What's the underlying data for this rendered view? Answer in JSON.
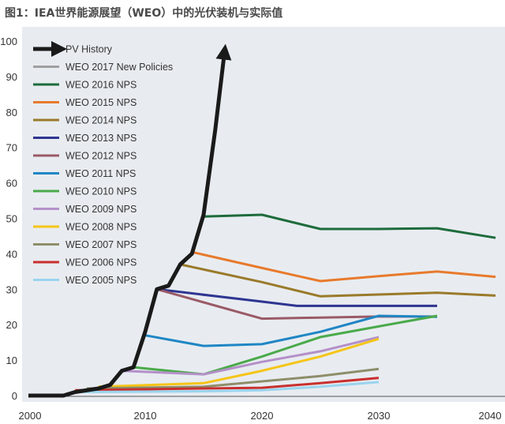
{
  "title": "图1：IEA世界能源展望（WEO）中的光伏装机与实际值",
  "chart_data": {
    "type": "line",
    "xlim": [
      2000,
      2040
    ],
    "ylim": [
      0,
      100
    ],
    "x_ticks": [
      2000,
      2010,
      2020,
      2030,
      2040
    ],
    "y_ticks": [
      0,
      10,
      20,
      30,
      40,
      50,
      60,
      70,
      80,
      90,
      100
    ],
    "grid": false,
    "legend_position": "top-left",
    "series": [
      {
        "name": "PV History",
        "color": "#1a1a1a",
        "width": 5,
        "arrow": true,
        "points": [
          [
            2000,
            0
          ],
          [
            2003,
            0
          ],
          [
            2004,
            1
          ],
          [
            2006,
            2
          ],
          [
            2007,
            3
          ],
          [
            2008,
            7
          ],
          [
            2009,
            8
          ],
          [
            2010,
            18
          ],
          [
            2011,
            30
          ],
          [
            2012,
            31
          ],
          [
            2013,
            37
          ],
          [
            2014,
            40
          ],
          [
            2015,
            51
          ],
          [
            2016,
            75
          ],
          [
            2016.8,
            97
          ]
        ]
      },
      {
        "name": "WEO 2017 New Policies",
        "color": "#a0a0a0",
        "width": 3,
        "points": []
      },
      {
        "name": "WEO 2016 NPS",
        "color": "#1e6b3b",
        "width": 3,
        "points": [
          [
            2015,
            50.5
          ],
          [
            2020,
            51
          ],
          [
            2025,
            47
          ],
          [
            2030,
            47
          ],
          [
            2035,
            47.2
          ],
          [
            2040,
            44.5
          ]
        ]
      },
      {
        "name": "WEO 2015 NPS",
        "color": "#e87a2c",
        "width": 3,
        "points": [
          [
            2014,
            40.5
          ],
          [
            2020,
            36
          ],
          [
            2025,
            32.3
          ],
          [
            2030,
            33.7
          ],
          [
            2035,
            35
          ],
          [
            2040,
            33.5
          ]
        ]
      },
      {
        "name": "WEO 2014 NPS",
        "color": "#9a7a2a",
        "width": 3,
        "points": [
          [
            2013,
            37
          ],
          [
            2020,
            32
          ],
          [
            2025,
            28
          ],
          [
            2030,
            28.5
          ],
          [
            2035,
            29
          ],
          [
            2040,
            28.2
          ]
        ]
      },
      {
        "name": "WEO 2013 NPS",
        "color": "#2e3590",
        "width": 3,
        "points": [
          [
            2011,
            30
          ],
          [
            2020,
            26.5
          ],
          [
            2023,
            25.3
          ],
          [
            2030,
            25.3
          ],
          [
            2035,
            25.3
          ]
        ]
      },
      {
        "name": "WEO 2012 NPS",
        "color": "#9a5a66",
        "width": 3,
        "points": [
          [
            2011,
            30
          ],
          [
            2020,
            21.7
          ],
          [
            2025,
            22
          ],
          [
            2030,
            22.3
          ],
          [
            2035,
            22.3
          ]
        ]
      },
      {
        "name": "WEO 2011 NPS",
        "color": "#1f86c4",
        "width": 3,
        "points": [
          [
            2010,
            17
          ],
          [
            2015,
            14
          ],
          [
            2020,
            14.5
          ],
          [
            2025,
            18
          ],
          [
            2030,
            22.5
          ],
          [
            2035,
            22.2
          ]
        ]
      },
      {
        "name": "WEO 2010 NPS",
        "color": "#4aaa4a",
        "width": 3,
        "points": [
          [
            2009,
            8
          ],
          [
            2015,
            6
          ],
          [
            2020,
            11
          ],
          [
            2025,
            16.5
          ],
          [
            2030,
            19.5
          ],
          [
            2035,
            22.5
          ]
        ]
      },
      {
        "name": "WEO 2009 NPS",
        "color": "#b490c8",
        "width": 3,
        "points": [
          [
            2008,
            7
          ],
          [
            2015,
            6
          ],
          [
            2020,
            9.5
          ],
          [
            2025,
            12.5
          ],
          [
            2030,
            16.5
          ]
        ]
      },
      {
        "name": "WEO 2008 NPS",
        "color": "#f5c518",
        "width": 3,
        "points": [
          [
            2006,
            2.5
          ],
          [
            2015,
            3.5
          ],
          [
            2020,
            7
          ],
          [
            2025,
            11
          ],
          [
            2030,
            16
          ]
        ]
      },
      {
        "name": "WEO 2007 NPS",
        "color": "#8e8e6a",
        "width": 3,
        "points": [
          [
            2005,
            2
          ],
          [
            2015,
            2.5
          ],
          [
            2020,
            4
          ],
          [
            2025,
            5.5
          ],
          [
            2030,
            7.5
          ]
        ]
      },
      {
        "name": "WEO 2006 NPS",
        "color": "#c8302e",
        "width": 3,
        "points": [
          [
            2004,
            1.5
          ],
          [
            2015,
            2
          ],
          [
            2020,
            2.2
          ],
          [
            2025,
            3.5
          ],
          [
            2030,
            5
          ]
        ]
      },
      {
        "name": "WEO 2005 NPS",
        "color": "#9ad4ee",
        "width": 3,
        "points": [
          [
            2004,
            1
          ],
          [
            2015,
            1.2
          ],
          [
            2020,
            1.5
          ],
          [
            2025,
            2.5
          ],
          [
            2030,
            3.8
          ]
        ]
      }
    ]
  }
}
